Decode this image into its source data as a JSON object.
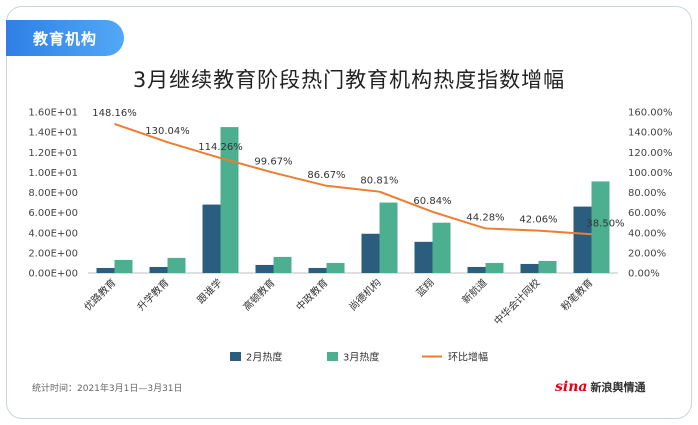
{
  "header": {
    "tab_label": "教育机构"
  },
  "footer": {
    "source_note": "统计时间：2021年3月1日—3月31日",
    "logo_text": "新浪舆情通",
    "logo_mark": "sina"
  },
  "colors": {
    "series1": "#2a5d7e",
    "series2": "#4caf8f",
    "line": "#ed7d31",
    "tab": "#3a8ef0"
  },
  "chart_data": {
    "type": "bar",
    "title": "3月继续教育阶段热门教育机构热度指数增幅",
    "categories": [
      "优路教育",
      "升学教育",
      "跟谁学",
      "高顿教育",
      "中政教育",
      "尚德机构",
      "蓝翔",
      "新航道",
      "中华会计网校",
      "粉笔教育"
    ],
    "series": [
      {
        "name": "2月热度",
        "type": "bar",
        "axis": "left",
        "values": [
          0.5,
          0.6,
          6.8,
          0.8,
          0.5,
          3.9,
          3.1,
          0.6,
          0.9,
          6.6
        ]
      },
      {
        "name": "3月热度",
        "type": "bar",
        "axis": "left",
        "values": [
          1.3,
          1.5,
          14.5,
          1.6,
          1.0,
          7.0,
          5.0,
          1.0,
          1.2,
          9.1
        ]
      },
      {
        "name": "环比增幅",
        "type": "line",
        "axis": "right",
        "values": [
          148.16,
          130.04,
          114.26,
          99.67,
          86.67,
          80.81,
          60.84,
          44.28,
          42.06,
          38.5
        ]
      }
    ],
    "data_labels": [
      "148.16%",
      "130.04%",
      "114.26%",
      "99.67%",
      "86.67%",
      "80.81%",
      "60.84%",
      "44.28%",
      "42.06%",
      "38.50%"
    ],
    "y_left": {
      "ticks": [
        "0.00E+00",
        "2.00E+00",
        "4.00E+00",
        "6.00E+00",
        "8.00E+00",
        "1.00E+01",
        "1.20E+01",
        "1.40E+01",
        "1.60E+01"
      ],
      "ylim": [
        0,
        16
      ]
    },
    "y_right": {
      "ticks": [
        "0.00%",
        "20.00%",
        "40.00%",
        "60.00%",
        "80.00%",
        "100.00%",
        "120.00%",
        "140.00%",
        "160.00%"
      ],
      "ylim": [
        0,
        160
      ]
    },
    "legend": {
      "position": "bottom",
      "items": [
        "2月热度",
        "3月热度",
        "环比增幅"
      ]
    },
    "grid": false
  }
}
